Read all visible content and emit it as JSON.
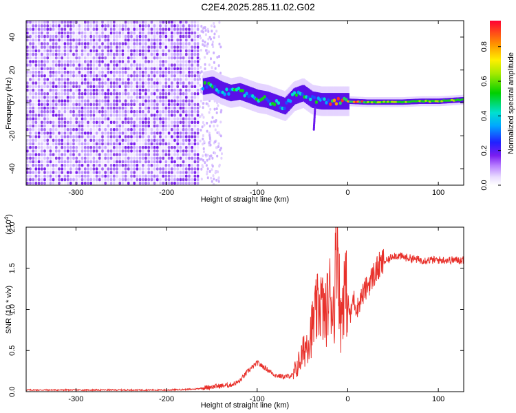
{
  "title": "C2E4.2025.285.11.02.G02",
  "chart_data": [
    {
      "type": "heatmap",
      "name": "spectrogram",
      "xlabel": "Height of straight line (km)",
      "ylabel": "Frequency (Hz)",
      "xlim": [
        -355,
        128
      ],
      "ylim": [
        -50,
        50
      ],
      "xticks": [
        -300,
        -200,
        -100,
        0,
        100
      ],
      "yticks": [
        -40,
        -20,
        0,
        20,
        40
      ],
      "colorbar": {
        "label": "Normalized spectral amplitude",
        "range": [
          0.0,
          0.95
        ],
        "ticks": [
          0.0,
          0.2,
          0.4,
          0.6,
          0.8
        ],
        "colormap": "rainbow: white-lavender-purple-blue-cyan-green-yellow-orange-red"
      },
      "features": {
        "noise_region_x": [
          -355,
          -165
        ],
        "noise_frequency_range": [
          -50,
          50
        ],
        "signal_track": {
          "x": [
            -160,
            -150,
            -140,
            -130,
            -120,
            -110,
            -100,
            -90,
            -80,
            -70,
            -60,
            -50,
            -40,
            -30,
            -20,
            -10,
            0,
            20,
            40,
            60,
            80,
            100,
            128
          ],
          "frequency": [
            10,
            11,
            8,
            6,
            7,
            5,
            3,
            2,
            0,
            -2,
            4,
            6,
            2,
            1,
            1,
            1,
            1,
            0.5,
            0.5,
            0.5,
            1,
            1,
            2
          ]
        }
      }
    },
    {
      "type": "line",
      "name": "snr",
      "xlabel": "Height of straight line (km)",
      "ylabel": "SNR (10 * v/v)",
      "y_multiplier": "(x10^4)",
      "xlim": [
        -355,
        128
      ],
      "ylim": [
        0,
        2.0
      ],
      "xticks": [
        -300,
        -200,
        -100,
        0,
        100
      ],
      "yticks": [
        0.0,
        0.5,
        1.0,
        1.5,
        2.0
      ],
      "color": "#e8312b",
      "series": [
        {
          "x": [
            -355,
            -300,
            -250,
            -200,
            -170,
            -150,
            -130,
            -120,
            -110,
            -100,
            -90,
            -80,
            -70,
            -60,
            -50,
            -45,
            -40,
            -35,
            -30,
            -25,
            -20,
            -15,
            -12,
            -10,
            -8,
            -5,
            -3,
            0,
            3,
            6,
            10,
            15,
            20,
            25,
            30,
            35,
            40,
            45,
            50,
            55,
            60,
            70,
            80,
            90,
            100,
            110,
            128
          ],
          "y": [
            0.02,
            0.02,
            0.02,
            0.02,
            0.03,
            0.06,
            0.08,
            0.12,
            0.25,
            0.35,
            0.28,
            0.2,
            0.18,
            0.2,
            0.45,
            0.6,
            0.75,
            0.95,
            1.1,
            0.9,
            1.2,
            1.0,
            2.0,
            1.5,
            0.8,
            1.2,
            1.3,
            1.1,
            0.9,
            1.15,
            1.0,
            1.15,
            1.25,
            1.35,
            1.45,
            1.52,
            1.58,
            1.6,
            1.66,
            1.65,
            1.64,
            1.62,
            1.6,
            1.6,
            1.6,
            1.6,
            1.6
          ]
        }
      ]
    }
  ]
}
